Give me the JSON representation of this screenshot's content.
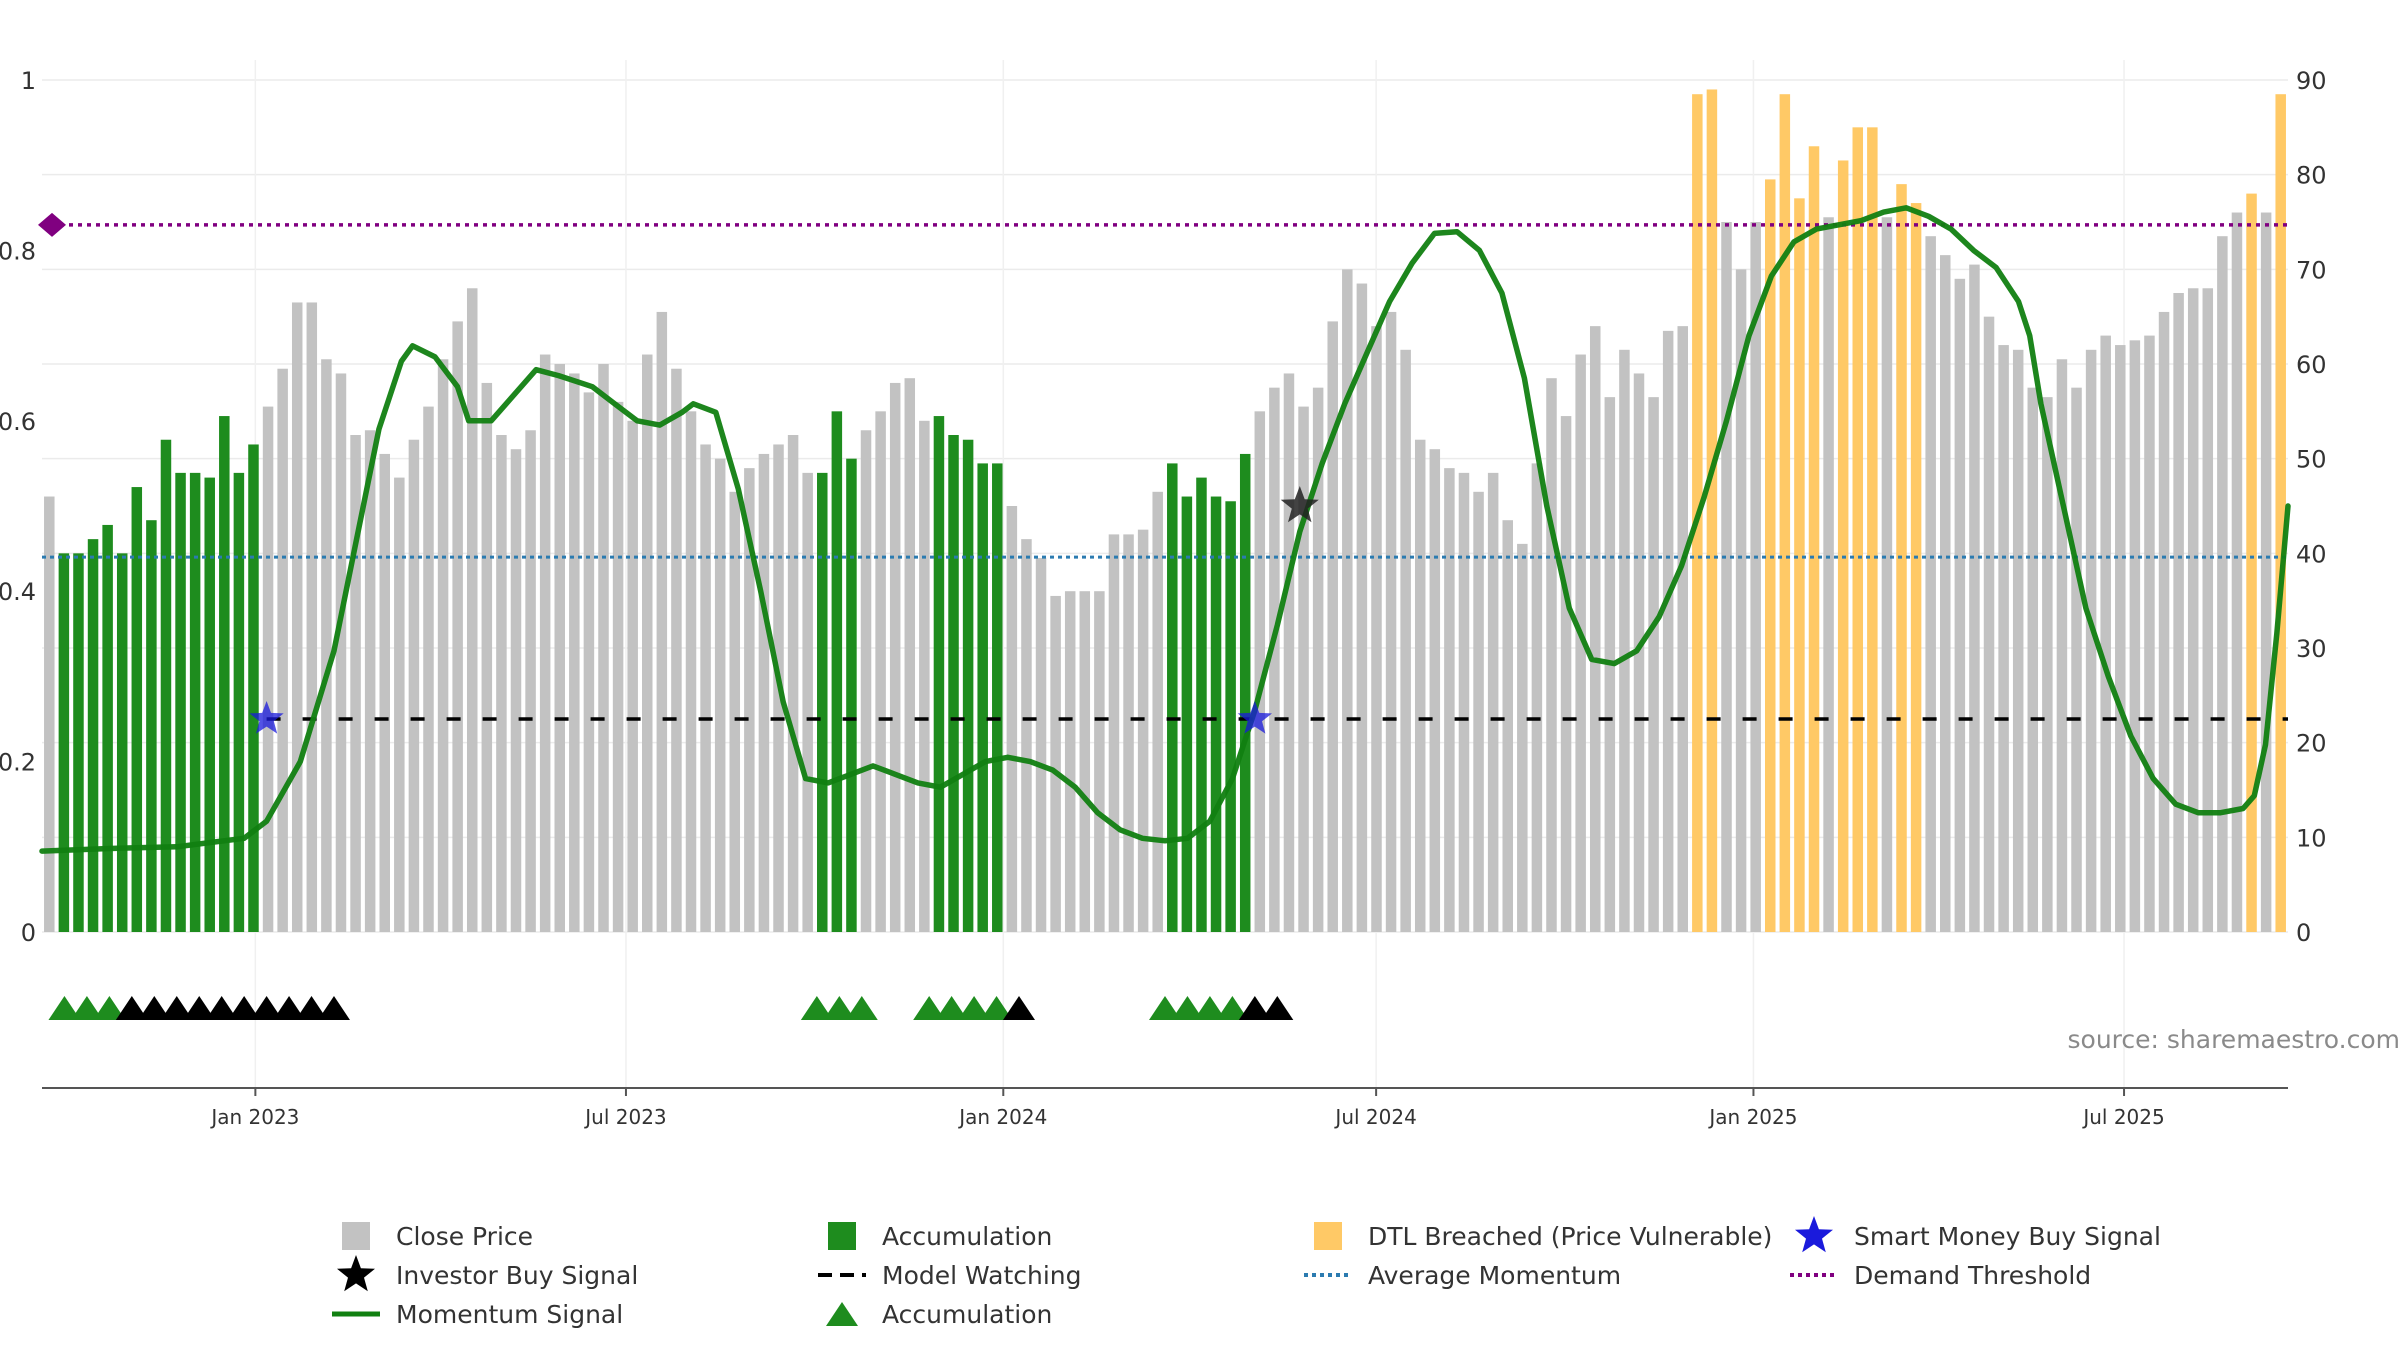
{
  "chart_data": {
    "type": "bar",
    "title": "",
    "source": "source: sharemaestro.com",
    "left_axis": {
      "min": 0,
      "max": 1,
      "ticks": [
        "0",
        "0.2",
        "0.4",
        "0.6",
        "0.8",
        "1"
      ]
    },
    "right_axis": {
      "min": 0,
      "max": 90,
      "ticks": [
        "0",
        "10",
        "20",
        "30",
        "40",
        "50",
        "60",
        "70",
        "80",
        "90"
      ]
    },
    "x_axis": {
      "ticks": [
        "Jan 2023",
        "Jul 2023",
        "Jan 2024",
        "Jul 2024",
        "Jan 2025",
        "Jul 2025"
      ]
    },
    "colors": {
      "close_price": "#c2c2c2",
      "accumulation": "#1e8c1e",
      "dtl_breached": "#ffc966",
      "momentum": "#118011",
      "average_momentum": "#2b7bb0",
      "demand_threshold": "#800080",
      "model_watching": "#000000",
      "smart_money": "#1a1adc",
      "investor_buy": "#222222"
    },
    "price_series": [
      {
        "v": 46,
        "s": "g"
      },
      {
        "v": 40,
        "s": "a"
      },
      {
        "v": 40,
        "s": "a"
      },
      {
        "v": 41.5,
        "s": "a"
      },
      {
        "v": 43,
        "s": "a"
      },
      {
        "v": 40,
        "s": "a"
      },
      {
        "v": 47,
        "s": "a"
      },
      {
        "v": 43.5,
        "s": "a"
      },
      {
        "v": 52,
        "s": "a"
      },
      {
        "v": 48.5,
        "s": "a"
      },
      {
        "v": 48.5,
        "s": "a"
      },
      {
        "v": 48,
        "s": "a"
      },
      {
        "v": 54.5,
        "s": "a"
      },
      {
        "v": 48.5,
        "s": "a"
      },
      {
        "v": 51.5,
        "s": "a"
      },
      {
        "v": 55.5,
        "s": "g"
      },
      {
        "v": 59.5,
        "s": "g"
      },
      {
        "v": 66.5,
        "s": "g"
      },
      {
        "v": 66.5,
        "s": "g"
      },
      {
        "v": 60.5,
        "s": "g"
      },
      {
        "v": 59,
        "s": "g"
      },
      {
        "v": 52.5,
        "s": "g"
      },
      {
        "v": 53,
        "s": "g"
      },
      {
        "v": 50.5,
        "s": "g"
      },
      {
        "v": 48,
        "s": "g"
      },
      {
        "v": 52,
        "s": "g"
      },
      {
        "v": 55.5,
        "s": "g"
      },
      {
        "v": 60.5,
        "s": "g"
      },
      {
        "v": 64.5,
        "s": "g"
      },
      {
        "v": 68,
        "s": "g"
      },
      {
        "v": 58,
        "s": "g"
      },
      {
        "v": 52.5,
        "s": "g"
      },
      {
        "v": 51,
        "s": "g"
      },
      {
        "v": 53,
        "s": "g"
      },
      {
        "v": 61,
        "s": "g"
      },
      {
        "v": 60,
        "s": "g"
      },
      {
        "v": 59,
        "s": "g"
      },
      {
        "v": 57,
        "s": "g"
      },
      {
        "v": 60,
        "s": "g"
      },
      {
        "v": 56,
        "s": "g"
      },
      {
        "v": 54,
        "s": "g"
      },
      {
        "v": 61,
        "s": "g"
      },
      {
        "v": 65.5,
        "s": "g"
      },
      {
        "v": 59.5,
        "s": "g"
      },
      {
        "v": 55,
        "s": "g"
      },
      {
        "v": 51.5,
        "s": "g"
      },
      {
        "v": 50,
        "s": "g"
      },
      {
        "v": 46.5,
        "s": "g"
      },
      {
        "v": 49,
        "s": "g"
      },
      {
        "v": 50.5,
        "s": "g"
      },
      {
        "v": 51.5,
        "s": "g"
      },
      {
        "v": 52.5,
        "s": "g"
      },
      {
        "v": 48.5,
        "s": "g"
      },
      {
        "v": 48.5,
        "s": "a"
      },
      {
        "v": 55,
        "s": "a"
      },
      {
        "v": 50,
        "s": "a"
      },
      {
        "v": 53,
        "s": "g"
      },
      {
        "v": 55,
        "s": "g"
      },
      {
        "v": 58,
        "s": "g"
      },
      {
        "v": 58.5,
        "s": "g"
      },
      {
        "v": 54,
        "s": "g"
      },
      {
        "v": 54.5,
        "s": "a"
      },
      {
        "v": 52.5,
        "s": "a"
      },
      {
        "v": 52,
        "s": "a"
      },
      {
        "v": 49.5,
        "s": "a"
      },
      {
        "v": 49.5,
        "s": "a"
      },
      {
        "v": 45,
        "s": "g"
      },
      {
        "v": 41.5,
        "s": "g"
      },
      {
        "v": 39.5,
        "s": "g"
      },
      {
        "v": 35.5,
        "s": "g"
      },
      {
        "v": 36,
        "s": "g"
      },
      {
        "v": 36,
        "s": "g"
      },
      {
        "v": 36,
        "s": "g"
      },
      {
        "v": 42,
        "s": "g"
      },
      {
        "v": 42,
        "s": "g"
      },
      {
        "v": 42.5,
        "s": "g"
      },
      {
        "v": 46.5,
        "s": "g"
      },
      {
        "v": 49.5,
        "s": "a"
      },
      {
        "v": 46,
        "s": "a"
      },
      {
        "v": 48,
        "s": "a"
      },
      {
        "v": 46,
        "s": "a"
      },
      {
        "v": 45.5,
        "s": "a"
      },
      {
        "v": 50.5,
        "s": "a"
      },
      {
        "v": 55,
        "s": "g"
      },
      {
        "v": 57.5,
        "s": "g"
      },
      {
        "v": 59,
        "s": "g"
      },
      {
        "v": 55.5,
        "s": "g"
      },
      {
        "v": 57.5,
        "s": "g"
      },
      {
        "v": 64.5,
        "s": "g"
      },
      {
        "v": 70,
        "s": "g"
      },
      {
        "v": 68.5,
        "s": "g"
      },
      {
        "v": 64,
        "s": "g"
      },
      {
        "v": 65.5,
        "s": "g"
      },
      {
        "v": 61.5,
        "s": "g"
      },
      {
        "v": 52,
        "s": "g"
      },
      {
        "v": 51,
        "s": "g"
      },
      {
        "v": 49,
        "s": "g"
      },
      {
        "v": 48.5,
        "s": "g"
      },
      {
        "v": 46.5,
        "s": "g"
      },
      {
        "v": 48.5,
        "s": "g"
      },
      {
        "v": 43.5,
        "s": "g"
      },
      {
        "v": 41,
        "s": "g"
      },
      {
        "v": 49.5,
        "s": "g"
      },
      {
        "v": 58.5,
        "s": "g"
      },
      {
        "v": 54.5,
        "s": "g"
      },
      {
        "v": 61,
        "s": "g"
      },
      {
        "v": 64,
        "s": "g"
      },
      {
        "v": 56.5,
        "s": "g"
      },
      {
        "v": 61.5,
        "s": "g"
      },
      {
        "v": 59,
        "s": "g"
      },
      {
        "v": 56.5,
        "s": "g"
      },
      {
        "v": 63.5,
        "s": "g"
      },
      {
        "v": 64,
        "s": "g"
      },
      {
        "v": 88.5,
        "s": "o"
      },
      {
        "v": 89,
        "s": "o"
      },
      {
        "v": 75,
        "s": "g"
      },
      {
        "v": 70,
        "s": "g"
      },
      {
        "v": 75,
        "s": "g"
      },
      {
        "v": 79.5,
        "s": "o"
      },
      {
        "v": 88.5,
        "s": "o"
      },
      {
        "v": 77.5,
        "s": "o"
      },
      {
        "v": 83,
        "s": "o"
      },
      {
        "v": 75.5,
        "s": "g"
      },
      {
        "v": 81.5,
        "s": "o"
      },
      {
        "v": 85,
        "s": "o"
      },
      {
        "v": 85,
        "s": "o"
      },
      {
        "v": 75.5,
        "s": "g"
      },
      {
        "v": 79,
        "s": "o"
      },
      {
        "v": 77,
        "s": "o"
      },
      {
        "v": 73.5,
        "s": "g"
      },
      {
        "v": 71.5,
        "s": "g"
      },
      {
        "v": 69,
        "s": "g"
      },
      {
        "v": 70.5,
        "s": "g"
      },
      {
        "v": 65,
        "s": "g"
      },
      {
        "v": 62,
        "s": "g"
      },
      {
        "v": 61.5,
        "s": "g"
      },
      {
        "v": 57.5,
        "s": "g"
      },
      {
        "v": 56.5,
        "s": "g"
      },
      {
        "v": 60.5,
        "s": "g"
      },
      {
        "v": 57.5,
        "s": "g"
      },
      {
        "v": 61.5,
        "s": "g"
      },
      {
        "v": 63,
        "s": "g"
      },
      {
        "v": 62,
        "s": "g"
      },
      {
        "v": 62.5,
        "s": "g"
      },
      {
        "v": 63,
        "s": "g"
      },
      {
        "v": 65.5,
        "s": "g"
      },
      {
        "v": 67.5,
        "s": "g"
      },
      {
        "v": 68,
        "s": "g"
      },
      {
        "v": 68,
        "s": "g"
      },
      {
        "v": 73.5,
        "s": "g"
      },
      {
        "v": 76,
        "s": "g"
      },
      {
        "v": 78,
        "s": "o"
      },
      {
        "v": 76,
        "s": "g"
      },
      {
        "v": 88.5,
        "s": "o"
      }
    ],
    "momentum_series": [
      [
        0,
        0.095
      ],
      [
        0.03,
        0.098
      ],
      [
        0.06,
        0.1
      ],
      [
        0.075,
        0.105
      ],
      [
        0.09,
        0.11
      ],
      [
        0.1,
        0.13
      ],
      [
        0.115,
        0.2
      ],
      [
        0.13,
        0.33
      ],
      [
        0.14,
        0.46
      ],
      [
        0.15,
        0.59
      ],
      [
        0.16,
        0.67
      ],
      [
        0.165,
        0.688
      ],
      [
        0.175,
        0.675
      ],
      [
        0.185,
        0.64
      ],
      [
        0.19,
        0.6
      ],
      [
        0.2,
        0.6
      ],
      [
        0.21,
        0.63
      ],
      [
        0.22,
        0.66
      ],
      [
        0.23,
        0.653
      ],
      [
        0.245,
        0.64
      ],
      [
        0.255,
        0.62
      ],
      [
        0.265,
        0.6
      ],
      [
        0.275,
        0.595
      ],
      [
        0.285,
        0.61
      ],
      [
        0.29,
        0.62
      ],
      [
        0.3,
        0.61
      ],
      [
        0.31,
        0.52
      ],
      [
        0.32,
        0.4
      ],
      [
        0.33,
        0.27
      ],
      [
        0.34,
        0.18
      ],
      [
        0.35,
        0.175
      ],
      [
        0.36,
        0.185
      ],
      [
        0.37,
        0.195
      ],
      [
        0.38,
        0.185
      ],
      [
        0.39,
        0.175
      ],
      [
        0.4,
        0.17
      ],
      [
        0.41,
        0.185
      ],
      [
        0.42,
        0.2
      ],
      [
        0.43,
        0.205
      ],
      [
        0.44,
        0.2
      ],
      [
        0.45,
        0.19
      ],
      [
        0.46,
        0.17
      ],
      [
        0.47,
        0.14
      ],
      [
        0.48,
        0.12
      ],
      [
        0.49,
        0.11
      ],
      [
        0.5,
        0.107
      ],
      [
        0.51,
        0.11
      ],
      [
        0.52,
        0.13
      ],
      [
        0.53,
        0.18
      ],
      [
        0.54,
        0.26
      ],
      [
        0.55,
        0.36
      ],
      [
        0.56,
        0.47
      ],
      [
        0.57,
        0.55
      ],
      [
        0.58,
        0.62
      ],
      [
        0.59,
        0.68
      ],
      [
        0.6,
        0.74
      ],
      [
        0.61,
        0.785
      ],
      [
        0.62,
        0.82
      ],
      [
        0.63,
        0.822
      ],
      [
        0.64,
        0.8
      ],
      [
        0.65,
        0.75
      ],
      [
        0.66,
        0.65
      ],
      [
        0.67,
        0.5
      ],
      [
        0.68,
        0.38
      ],
      [
        0.69,
        0.32
      ],
      [
        0.7,
        0.315
      ],
      [
        0.71,
        0.33
      ],
      [
        0.72,
        0.37
      ],
      [
        0.73,
        0.43
      ],
      [
        0.74,
        0.51
      ],
      [
        0.75,
        0.6
      ],
      [
        0.76,
        0.7
      ],
      [
        0.77,
        0.77
      ],
      [
        0.78,
        0.81
      ],
      [
        0.79,
        0.825
      ],
      [
        0.8,
        0.83
      ],
      [
        0.81,
        0.835
      ],
      [
        0.82,
        0.845
      ],
      [
        0.83,
        0.85
      ],
      [
        0.84,
        0.84
      ],
      [
        0.85,
        0.825
      ],
      [
        0.86,
        0.8
      ],
      [
        0.87,
        0.78
      ],
      [
        0.88,
        0.74
      ],
      [
        0.885,
        0.7
      ],
      [
        0.89,
        0.62
      ],
      [
        0.9,
        0.5
      ],
      [
        0.91,
        0.38
      ],
      [
        0.92,
        0.3
      ],
      [
        0.93,
        0.23
      ],
      [
        0.94,
        0.18
      ],
      [
        0.95,
        0.15
      ],
      [
        0.96,
        0.14
      ],
      [
        0.97,
        0.14
      ],
      [
        0.98,
        0.145
      ],
      [
        0.985,
        0.16
      ],
      [
        0.99,
        0.22
      ],
      [
        0.995,
        0.35
      ],
      [
        1,
        0.5
      ]
    ],
    "average_momentum": 0.44,
    "demand_threshold": 0.83,
    "model_watching_level": 0.25,
    "model_watching_start": 0.1,
    "smart_money_signals": [
      [
        0.1,
        0.25
      ],
      [
        0.54,
        0.25
      ]
    ],
    "investor_buy_signals": [
      [
        0.56,
        0.5
      ]
    ],
    "accumulation_markers_green": [
      0.01,
      0.02,
      0.03,
      0.345,
      0.355,
      0.365,
      0.395,
      0.405,
      0.415,
      0.425,
      0.5,
      0.51,
      0.52,
      0.53
    ],
    "accumulation_markers_black": [
      0.04,
      0.05,
      0.06,
      0.07,
      0.08,
      0.09,
      0.1,
      0.11,
      0.12,
      0.13,
      0.435,
      0.54,
      0.55
    ],
    "legend": [
      {
        "label": "Close Price",
        "symbol": "square-grey"
      },
      {
        "label": "Accumulation",
        "symbol": "square-green"
      },
      {
        "label": "DTL Breached (Price Vulnerable)",
        "symbol": "square-orange"
      },
      {
        "label": "Smart Money Buy Signal",
        "symbol": "star-blue"
      },
      {
        "label": "Investor Buy Signal",
        "symbol": "star-black"
      },
      {
        "label": "Model Watching",
        "symbol": "dash-black"
      },
      {
        "label": "Average Momentum",
        "symbol": "dot-blue"
      },
      {
        "label": "Demand Threshold",
        "symbol": "dot-purple"
      },
      {
        "label": "Momentum Signal",
        "symbol": "line-green"
      },
      {
        "label": "Accumulation",
        "symbol": "triangle-green"
      }
    ]
  }
}
